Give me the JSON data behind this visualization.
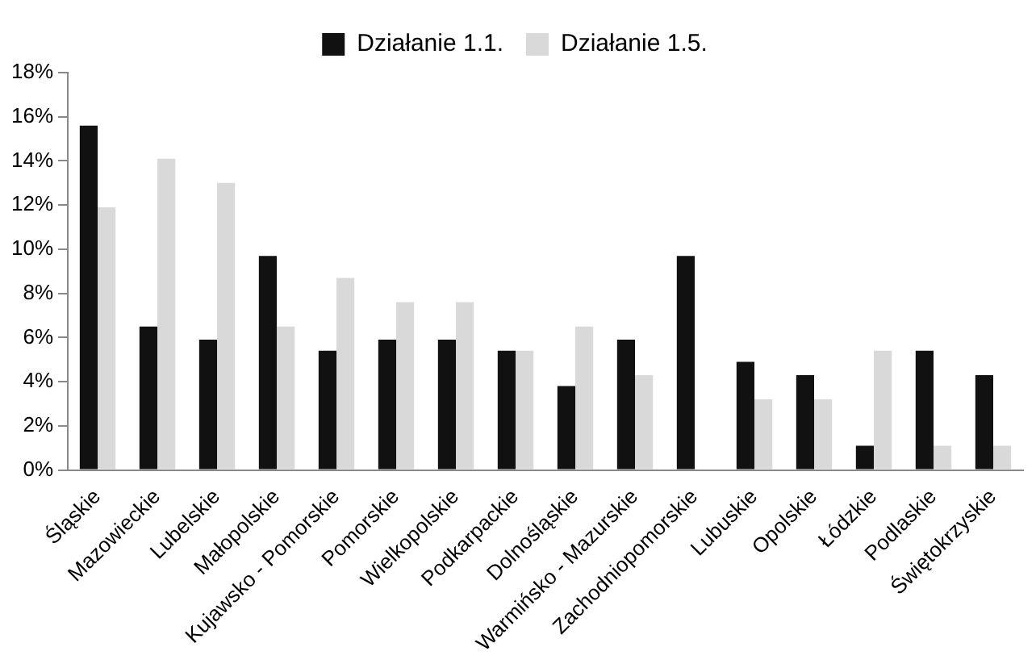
{
  "chart_data": {
    "type": "bar",
    "categories": [
      "Śląskie",
      "Mazowieckie",
      "Lubelskie",
      "Małopolskie",
      "Kujawsko - Pomorskie",
      "Pomorskie",
      "Wielkopolskie",
      "Podkarpackie",
      "Dolnośląskie",
      "Warmińsko - Mazurskie",
      "Zachodniopomorskie",
      "Lubuskie",
      "Opolskie",
      "Łódzkie",
      "Podlaskie",
      "Świętokrzyskie"
    ],
    "series": [
      {
        "name": "Działanie 1.1.",
        "color": "#111111",
        "values": [
          15.6,
          6.5,
          5.9,
          9.7,
          5.4,
          5.9,
          5.9,
          5.4,
          3.8,
          5.9,
          9.7,
          4.9,
          4.3,
          1.1,
          5.4,
          4.3
        ]
      },
      {
        "name": "Działanie 1.5.",
        "color": "#d9d9d9",
        "values": [
          11.9,
          14.1,
          13.0,
          6.5,
          8.7,
          7.6,
          7.6,
          5.4,
          6.5,
          4.3,
          0,
          3.2,
          3.2,
          5.4,
          1.1,
          1.1
        ]
      }
    ],
    "ylim": [
      0,
      18
    ],
    "yticks": [
      {
        "value": 0,
        "label": "0%"
      },
      {
        "value": 2,
        "label": "2%"
      },
      {
        "value": 4,
        "label": "4%"
      },
      {
        "value": 6,
        "label": "6%"
      },
      {
        "value": 8,
        "label": "8%"
      },
      {
        "value": 10,
        "label": "10%"
      },
      {
        "value": 12,
        "label": "12%"
      },
      {
        "value": 14,
        "label": "14%"
      },
      {
        "value": 16,
        "label": "16%"
      },
      {
        "value": 18,
        "label": "18%"
      }
    ],
    "grid": false,
    "legend": "top"
  }
}
